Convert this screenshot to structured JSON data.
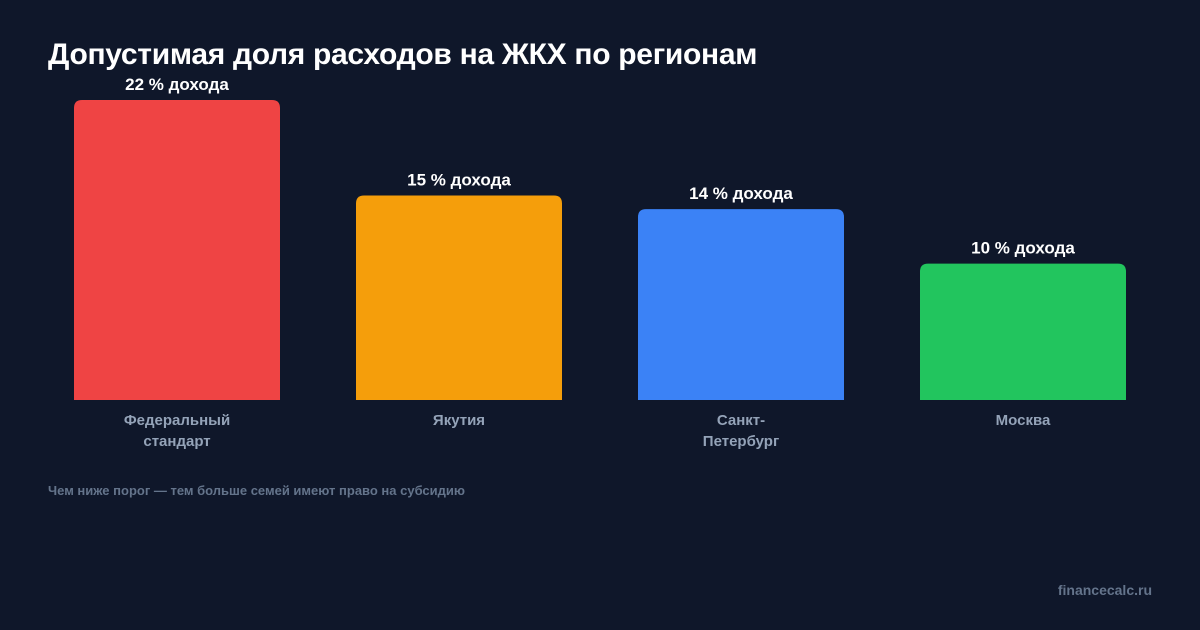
{
  "chart_data": {
    "type": "bar",
    "title": "Допустимая доля расходов на ЖКХ по регионам",
    "categories": [
      [
        "Федеральный",
        "стандарт"
      ],
      [
        "Якутия"
      ],
      [
        "Санкт-",
        "Петербург"
      ],
      [
        "Москва"
      ]
    ],
    "values": [
      22,
      15,
      14,
      10
    ],
    "value_labels": [
      "22 % дохода",
      "15 % дохода",
      "14 % дохода",
      "10 % дохода"
    ],
    "colors": [
      "#ef4444",
      "#f59e0b",
      "#3b82f6",
      "#22c55e"
    ],
    "ylim": [
      0,
      22
    ],
    "grid": false,
    "axes_visible": false,
    "unit": "% дохода"
  },
  "footnote": "Чем ниже порог — тем больше семей имеют право на субсидию",
  "watermark": "financecalc.ru"
}
